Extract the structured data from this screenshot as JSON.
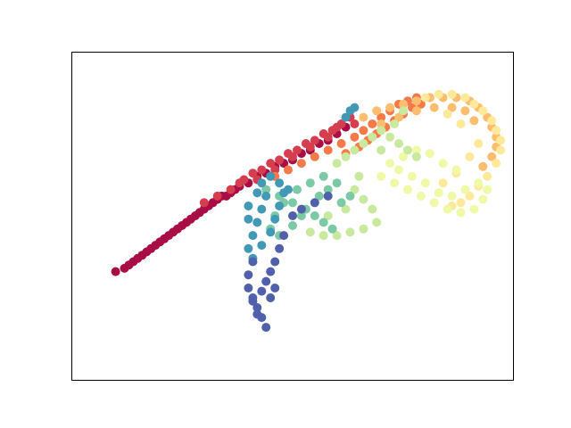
{
  "chart_data": {
    "type": "scatter",
    "title": "",
    "xlabel": "",
    "ylabel": "",
    "axes_visible_ticks": false,
    "grid": false,
    "legend": "none",
    "colormap": "Spectral",
    "xlim": [
      0,
      1
    ],
    "ylim": [
      0,
      1
    ],
    "description": "",
    "clusters": [
      {
        "name": "",
        "color_t": 0.02,
        "points": [
          [
            0.1,
            0.33
          ],
          [
            0.12,
            0.34
          ],
          [
            0.13,
            0.35
          ],
          [
            0.15,
            0.37
          ],
          [
            0.16,
            0.38
          ],
          [
            0.18,
            0.4
          ],
          [
            0.19,
            0.41
          ],
          [
            0.2,
            0.42
          ],
          [
            0.22,
            0.44
          ],
          [
            0.23,
            0.45
          ],
          [
            0.25,
            0.47
          ],
          [
            0.26,
            0.48
          ],
          [
            0.27,
            0.49
          ],
          [
            0.29,
            0.51
          ],
          [
            0.3,
            0.52
          ],
          [
            0.32,
            0.54
          ],
          [
            0.33,
            0.55
          ],
          [
            0.34,
            0.56
          ],
          [
            0.36,
            0.57
          ],
          [
            0.37,
            0.58
          ],
          [
            0.14,
            0.36
          ],
          [
            0.17,
            0.39
          ],
          [
            0.21,
            0.43
          ],
          [
            0.24,
            0.46
          ],
          [
            0.28,
            0.5
          ],
          [
            0.31,
            0.53
          ],
          [
            0.35,
            0.56
          ],
          [
            0.38,
            0.59
          ],
          [
            0.4,
            0.6
          ],
          [
            0.42,
            0.62
          ],
          [
            0.44,
            0.63
          ],
          [
            0.46,
            0.65
          ],
          [
            0.48,
            0.66
          ],
          [
            0.5,
            0.67
          ],
          [
            0.52,
            0.69
          ],
          [
            0.54,
            0.7
          ],
          [
            0.56,
            0.72
          ],
          [
            0.58,
            0.73
          ],
          [
            0.6,
            0.75
          ],
          [
            0.62,
            0.77
          ]
        ]
      },
      {
        "name": "",
        "color_t": 0.1,
        "points": [
          [
            0.3,
            0.54
          ],
          [
            0.33,
            0.56
          ],
          [
            0.36,
            0.58
          ],
          [
            0.39,
            0.61
          ],
          [
            0.41,
            0.63
          ],
          [
            0.43,
            0.64
          ],
          [
            0.45,
            0.66
          ],
          [
            0.47,
            0.67
          ],
          [
            0.49,
            0.69
          ],
          [
            0.51,
            0.7
          ],
          [
            0.53,
            0.72
          ],
          [
            0.55,
            0.73
          ],
          [
            0.57,
            0.75
          ],
          [
            0.59,
            0.76
          ],
          [
            0.61,
            0.78
          ],
          [
            0.63,
            0.8
          ],
          [
            0.38,
            0.6
          ],
          [
            0.42,
            0.61
          ],
          [
            0.46,
            0.64
          ],
          [
            0.5,
            0.68
          ],
          [
            0.54,
            0.71
          ],
          [
            0.58,
            0.74
          ],
          [
            0.6,
            0.77
          ],
          [
            0.64,
            0.78
          ]
        ]
      },
      {
        "name": "",
        "color_t": 0.22,
        "points": [
          [
            0.46,
            0.62
          ],
          [
            0.49,
            0.64
          ],
          [
            0.52,
            0.66
          ],
          [
            0.55,
            0.68
          ],
          [
            0.58,
            0.7
          ],
          [
            0.61,
            0.72
          ],
          [
            0.64,
            0.74
          ],
          [
            0.66,
            0.76
          ],
          [
            0.68,
            0.78
          ],
          [
            0.7,
            0.8
          ],
          [
            0.72,
            0.82
          ],
          [
            0.74,
            0.84
          ],
          [
            0.76,
            0.85
          ],
          [
            0.78,
            0.86
          ],
          [
            0.62,
            0.69
          ],
          [
            0.65,
            0.71
          ],
          [
            0.67,
            0.73
          ],
          [
            0.69,
            0.75
          ],
          [
            0.71,
            0.77
          ],
          [
            0.73,
            0.79
          ],
          [
            0.75,
            0.81
          ],
          [
            0.77,
            0.83
          ],
          [
            0.79,
            0.84
          ],
          [
            0.81,
            0.86
          ]
        ]
      },
      {
        "name": "",
        "color_t": 0.33,
        "points": [
          [
            0.66,
            0.8
          ],
          [
            0.69,
            0.82
          ],
          [
            0.72,
            0.83
          ],
          [
            0.75,
            0.84
          ],
          [
            0.78,
            0.85
          ],
          [
            0.81,
            0.86
          ],
          [
            0.84,
            0.86
          ],
          [
            0.87,
            0.86
          ],
          [
            0.9,
            0.85
          ],
          [
            0.92,
            0.83
          ],
          [
            0.94,
            0.8
          ],
          [
            0.95,
            0.77
          ],
          [
            0.96,
            0.74
          ],
          [
            0.96,
            0.71
          ],
          [
            0.95,
            0.68
          ],
          [
            0.93,
            0.65
          ],
          [
            0.7,
            0.78
          ],
          [
            0.74,
            0.8
          ],
          [
            0.78,
            0.82
          ],
          [
            0.82,
            0.83
          ],
          [
            0.86,
            0.83
          ],
          [
            0.89,
            0.82
          ],
          [
            0.91,
            0.79
          ]
        ]
      },
      {
        "name": "",
        "color_t": 0.43,
        "points": [
          [
            0.8,
            0.86
          ],
          [
            0.83,
            0.87
          ],
          [
            0.86,
            0.87
          ],
          [
            0.89,
            0.86
          ],
          [
            0.91,
            0.84
          ],
          [
            0.93,
            0.82
          ],
          [
            0.95,
            0.79
          ],
          [
            0.96,
            0.76
          ],
          [
            0.97,
            0.73
          ],
          [
            0.97,
            0.7
          ],
          [
            0.96,
            0.66
          ],
          [
            0.94,
            0.62
          ],
          [
            0.92,
            0.59
          ],
          [
            0.9,
            0.56
          ],
          [
            0.88,
            0.54
          ],
          [
            0.86,
            0.53
          ],
          [
            0.84,
            0.6
          ],
          [
            0.87,
            0.63
          ],
          [
            0.9,
            0.68
          ],
          [
            0.92,
            0.72
          ],
          [
            0.88,
            0.78
          ],
          [
            0.85,
            0.81
          ]
        ]
      },
      {
        "name": "",
        "color_t": 0.56,
        "points": [
          [
            0.7,
            0.62
          ],
          [
            0.73,
            0.6
          ],
          [
            0.76,
            0.58
          ],
          [
            0.79,
            0.56
          ],
          [
            0.82,
            0.54
          ],
          [
            0.85,
            0.52
          ],
          [
            0.88,
            0.51
          ],
          [
            0.91,
            0.52
          ],
          [
            0.93,
            0.55
          ],
          [
            0.94,
            0.58
          ],
          [
            0.92,
            0.6
          ],
          [
            0.89,
            0.58
          ],
          [
            0.86,
            0.56
          ],
          [
            0.83,
            0.57
          ],
          [
            0.8,
            0.6
          ],
          [
            0.77,
            0.62
          ],
          [
            0.74,
            0.64
          ],
          [
            0.72,
            0.66
          ],
          [
            0.75,
            0.68
          ],
          [
            0.78,
            0.7
          ],
          [
            0.81,
            0.69
          ],
          [
            0.84,
            0.66
          ],
          [
            0.87,
            0.64
          ]
        ]
      },
      {
        "name": "",
        "color_t": 0.65,
        "points": [
          [
            0.6,
            0.66
          ],
          [
            0.62,
            0.68
          ],
          [
            0.64,
            0.7
          ],
          [
            0.66,
            0.72
          ],
          [
            0.68,
            0.74
          ],
          [
            0.7,
            0.76
          ],
          [
            0.72,
            0.74
          ],
          [
            0.74,
            0.72
          ],
          [
            0.76,
            0.7
          ],
          [
            0.78,
            0.68
          ],
          [
            0.64,
            0.58
          ],
          [
            0.66,
            0.55
          ],
          [
            0.68,
            0.52
          ],
          [
            0.69,
            0.48
          ],
          [
            0.66,
            0.46
          ],
          [
            0.63,
            0.45
          ],
          [
            0.6,
            0.44
          ],
          [
            0.57,
            0.44
          ],
          [
            0.54,
            0.45
          ],
          [
            0.58,
            0.5
          ],
          [
            0.62,
            0.52
          ],
          [
            0.65,
            0.62
          ],
          [
            0.7,
            0.7
          ],
          [
            0.73,
            0.78
          ],
          [
            0.75,
            0.82
          ]
        ]
      },
      {
        "name": "",
        "color_t": 0.77,
        "points": [
          [
            0.44,
            0.58
          ],
          [
            0.47,
            0.56
          ],
          [
            0.5,
            0.54
          ],
          [
            0.53,
            0.52
          ],
          [
            0.55,
            0.5
          ],
          [
            0.57,
            0.48
          ],
          [
            0.59,
            0.46
          ],
          [
            0.61,
            0.54
          ],
          [
            0.63,
            0.56
          ],
          [
            0.6,
            0.6
          ],
          [
            0.57,
            0.62
          ],
          [
            0.54,
            0.6
          ],
          [
            0.51,
            0.58
          ],
          [
            0.48,
            0.54
          ],
          [
            0.46,
            0.5
          ],
          [
            0.45,
            0.46
          ],
          [
            0.47,
            0.44
          ],
          [
            0.5,
            0.47
          ],
          [
            0.52,
            0.5
          ],
          [
            0.56,
            0.56
          ],
          [
            0.58,
            0.58
          ]
        ]
      },
      {
        "name": "",
        "color_t": 0.87,
        "points": [
          [
            0.43,
            0.6
          ],
          [
            0.44,
            0.56
          ],
          [
            0.43,
            0.52
          ],
          [
            0.42,
            0.48
          ],
          [
            0.41,
            0.44
          ],
          [
            0.4,
            0.4
          ],
          [
            0.41,
            0.37
          ],
          [
            0.43,
            0.41
          ],
          [
            0.45,
            0.45
          ],
          [
            0.46,
            0.49
          ],
          [
            0.47,
            0.53
          ],
          [
            0.48,
            0.57
          ],
          [
            0.45,
            0.62
          ],
          [
            0.47,
            0.6
          ],
          [
            0.49,
            0.58
          ],
          [
            0.42,
            0.57
          ],
          [
            0.4,
            0.53
          ],
          [
            0.4,
            0.49
          ],
          [
            0.62,
            0.8
          ],
          [
            0.63,
            0.82
          ],
          [
            0.64,
            0.83
          ]
        ]
      },
      {
        "name": "",
        "color_t": 0.97,
        "points": [
          [
            0.41,
            0.36
          ],
          [
            0.4,
            0.32
          ],
          [
            0.4,
            0.28
          ],
          [
            0.41,
            0.25
          ],
          [
            0.42,
            0.22
          ],
          [
            0.43,
            0.19
          ],
          [
            0.44,
            0.16
          ],
          [
            0.42,
            0.2
          ],
          [
            0.41,
            0.24
          ],
          [
            0.43,
            0.27
          ],
          [
            0.44,
            0.3
          ],
          [
            0.45,
            0.33
          ],
          [
            0.46,
            0.36
          ],
          [
            0.47,
            0.4
          ],
          [
            0.48,
            0.44
          ],
          [
            0.5,
            0.5
          ],
          [
            0.52,
            0.52
          ],
          [
            0.55,
            0.54
          ],
          [
            0.58,
            0.56
          ],
          [
            0.45,
            0.25
          ],
          [
            0.46,
            0.28
          ]
        ]
      }
    ]
  },
  "colors": {
    "axes_frame": "#000000",
    "background": "#ffffff"
  }
}
